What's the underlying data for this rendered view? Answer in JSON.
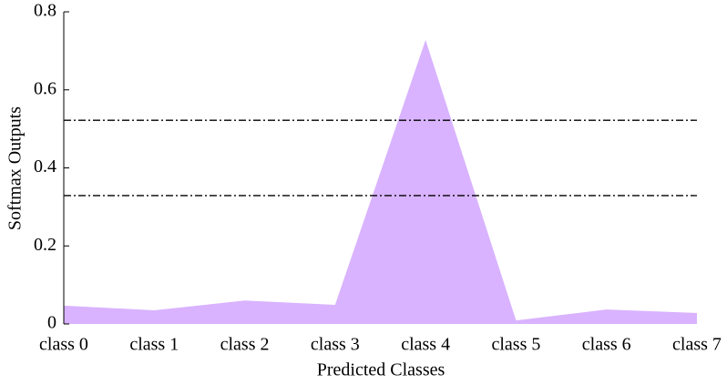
{
  "chart_data": {
    "type": "area",
    "x_label": "Predicted Classes",
    "y_label": "Softmax Outputs",
    "categories": [
      "class 0",
      "class 1",
      "class 2",
      "class 3",
      "class 4",
      "class 5",
      "class 6",
      "class 7"
    ],
    "values": [
      0.047,
      0.035,
      0.06,
      0.049,
      0.728,
      0.009,
      0.037,
      0.028
    ],
    "color": "#d9b3ff",
    "reference_lines": [
      0.522,
      0.329
    ],
    "ylim": [
      0,
      0.8
    ],
    "yticks": [
      0,
      0.2,
      0.4,
      0.6,
      0.8
    ]
  }
}
